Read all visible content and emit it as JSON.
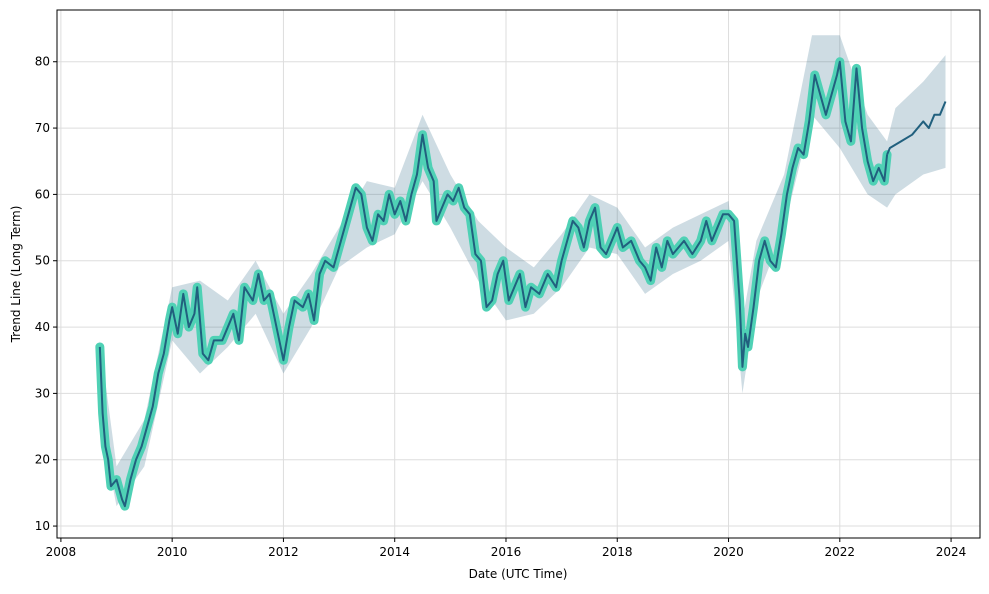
{
  "chart_data": {
    "type": "line",
    "x_label": "Date (UTC Time)",
    "y_label": "Trend Line (Long Term)",
    "xlim": [
      2007.93,
      2024.52
    ],
    "xticks": [
      2008,
      2010,
      2012,
      2014,
      2016,
      2018,
      2020,
      2022,
      2024
    ],
    "ylim": [
      8.2,
      87.8
    ],
    "yticks": [
      10,
      20,
      30,
      40,
      50,
      60,
      70,
      80
    ],
    "grid": true,
    "band": {
      "color": "#21607e",
      "x": [
        2008.7,
        2009.0,
        2009.5,
        2010.0,
        2010.5,
        2011.0,
        2011.5,
        2012.0,
        2012.5,
        2013.0,
        2013.5,
        2014.0,
        2014.5,
        2015.0,
        2015.5,
        2016.0,
        2016.5,
        2017.0,
        2017.5,
        2018.0,
        2018.5,
        2019.0,
        2019.5,
        2020.0,
        2020.25,
        2020.5,
        2021.0,
        2021.5,
        2022.0,
        2022.5,
        2022.85,
        2023.0,
        2023.5,
        2023.9
      ],
      "lower": [
        26,
        13,
        19,
        38,
        33,
        37,
        42,
        33,
        40,
        49,
        52,
        54,
        62,
        55,
        47,
        41,
        42,
        46,
        52,
        51,
        45,
        48,
        50,
        53,
        30,
        44,
        55,
        72,
        67,
        60,
        58,
        60,
        63,
        64
      ],
      "upper": [
        38,
        19,
        26,
        46,
        47,
        44,
        50,
        42,
        48,
        55,
        62,
        61,
        72,
        63,
        56,
        52,
        49,
        54,
        60,
        58,
        52,
        55,
        57,
        59,
        41,
        53,
        63,
        84,
        84,
        72,
        68,
        73,
        77,
        81
      ]
    },
    "series": [
      {
        "color": "#21607e",
        "outline_color": "#4fd1b5",
        "x": [
          2008.7,
          2008.75,
          2008.8,
          2008.85,
          2008.9,
          2009.0,
          2009.1,
          2009.15,
          2009.25,
          2009.35,
          2009.45,
          2009.55,
          2009.65,
          2009.75,
          2009.85,
          2009.95,
          2010.0,
          2010.1,
          2010.2,
          2010.3,
          2010.4,
          2010.45,
          2010.55,
          2010.65,
          2010.75,
          2010.9,
          2011.0,
          2011.1,
          2011.2,
          2011.3,
          2011.45,
          2011.55,
          2011.65,
          2011.75,
          2011.9,
          2012.0,
          2012.1,
          2012.2,
          2012.35,
          2012.45,
          2012.55,
          2012.65,
          2012.75,
          2012.9,
          2013.0,
          2013.1,
          2013.2,
          2013.3,
          2013.4,
          2013.5,
          2013.6,
          2013.7,
          2013.8,
          2013.9,
          2014.0,
          2014.1,
          2014.2,
          2014.3,
          2014.4,
          2014.5,
          2014.6,
          2014.7,
          2014.75,
          2014.85,
          2014.95,
          2015.05,
          2015.15,
          2015.25,
          2015.35,
          2015.45,
          2015.55,
          2015.65,
          2015.75,
          2015.85,
          2015.95,
          2016.05,
          2016.15,
          2016.25,
          2016.35,
          2016.45,
          2016.6,
          2016.75,
          2016.9,
          2017.0,
          2017.1,
          2017.2,
          2017.3,
          2017.4,
          2017.5,
          2017.6,
          2017.7,
          2017.8,
          2017.9,
          2018.0,
          2018.1,
          2018.25,
          2018.4,
          2018.5,
          2018.6,
          2018.7,
          2018.8,
          2018.9,
          2019.0,
          2019.2,
          2019.35,
          2019.5,
          2019.6,
          2019.7,
          2019.8,
          2019.9,
          2020.0,
          2020.1,
          2020.2,
          2020.25,
          2020.3,
          2020.35,
          2020.45,
          2020.55,
          2020.65,
          2020.75,
          2020.85,
          2020.95,
          2021.05,
          2021.15,
          2021.25,
          2021.35,
          2021.45,
          2021.55,
          2021.65,
          2021.75,
          2021.85,
          2021.95,
          2022.0,
          2022.1,
          2022.2,
          2022.3,
          2022.4,
          2022.5,
          2022.6,
          2022.7,
          2022.8,
          2022.85
        ],
        "values": [
          37,
          27,
          22,
          20,
          16,
          17,
          14,
          13,
          17,
          20,
          22,
          25,
          28,
          33,
          36,
          41,
          43,
          39,
          45,
          40,
          42,
          46,
          36,
          35,
          38,
          38,
          40,
          42,
          38,
          46,
          44,
          48,
          44,
          45,
          39,
          35,
          40,
          44,
          43,
          45,
          41,
          48,
          50,
          49,
          52,
          55,
          58,
          61,
          60,
          55,
          53,
          57,
          56,
          60,
          57,
          59,
          56,
          60,
          63,
          69,
          64,
          62,
          56,
          58,
          60,
          59,
          61,
          58,
          57,
          51,
          50,
          43,
          44,
          48,
          50,
          44,
          46,
          48,
          43,
          46,
          45,
          48,
          46,
          50,
          53,
          56,
          55,
          52,
          56,
          58,
          52,
          51,
          53,
          55,
          52,
          53,
          50,
          49,
          47,
          52,
          49,
          53,
          51,
          53,
          51,
          53,
          56,
          53,
          55,
          57,
          57,
          56,
          44,
          34,
          39,
          37,
          43,
          50,
          53,
          50,
          49,
          54,
          60,
          64,
          67,
          66,
          71,
          78,
          75,
          72,
          75,
          78,
          80,
          71,
          68,
          79,
          70,
          65,
          62,
          64,
          62,
          66
        ]
      },
      {
        "color": "#21607e",
        "x": [
          2022.85,
          2022.9,
          2023.1,
          2023.3,
          2023.5,
          2023.6,
          2023.7,
          2023.8,
          2023.9
        ],
        "values": [
          66,
          67,
          68,
          69,
          71,
          70,
          72,
          72,
          74
        ]
      }
    ]
  }
}
